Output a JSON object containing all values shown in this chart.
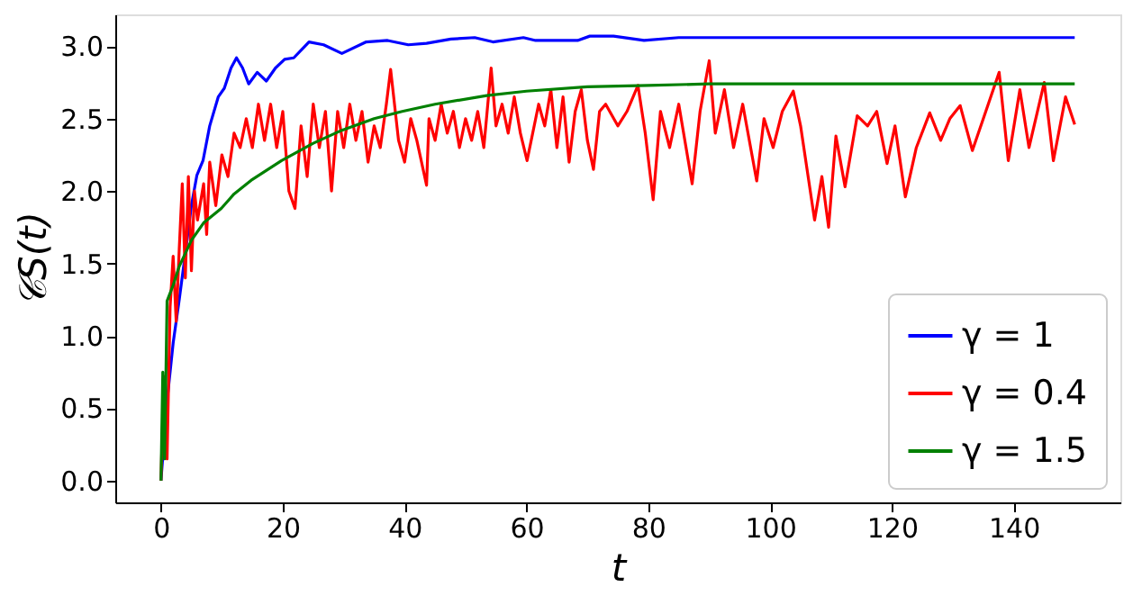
{
  "chart_data": {
    "type": "line",
    "xlabel": "t",
    "ylabel": "𝒞S(t)",
    "xlim": [
      -7.5,
      157.5
    ],
    "ylim": [
      -0.15,
      3.22
    ],
    "xticks": [
      0,
      20,
      40,
      60,
      80,
      100,
      120,
      140
    ],
    "yticks": [
      {
        "value": 0,
        "label": "0.0"
      },
      0.5,
      {
        "value": 1,
        "label": "1.0"
      },
      1.5,
      {
        "value": 2,
        "label": "2.0"
      },
      2.5,
      {
        "value": 3,
        "label": "3.0"
      }
    ],
    "grid": false,
    "legend": "bottom right",
    "marker": "none",
    "line_style": "solid",
    "series": [
      {
        "name": "γ = 1",
        "color": "#0000ff",
        "x": [
          0,
          1,
          2,
          3,
          4,
          5,
          5.9,
          6.9,
          8,
          9.4,
          10.4,
          11.5,
          12.4,
          13.4,
          14.4,
          15.8,
          17.3,
          18.8,
          20.3,
          21.8,
          24.3,
          26.7,
          29.7,
          33.7,
          37.2,
          40.6,
          43.6,
          47.6,
          51.5,
          54.5,
          59.5,
          61.5,
          68.4,
          70.4,
          74.3,
          79.3,
          85,
          100,
          120,
          150
        ],
        "values": [
          0,
          0.55,
          0.95,
          1.25,
          1.57,
          1.9,
          2.11,
          2.21,
          2.45,
          2.65,
          2.71,
          2.85,
          2.92,
          2.85,
          2.74,
          2.82,
          2.76,
          2.85,
          2.91,
          2.92,
          3.03,
          3.01,
          2.95,
          3.03,
          3.04,
          3.01,
          3.02,
          3.05,
          3.06,
          3.03,
          3.06,
          3.04,
          3.04,
          3.07,
          3.07,
          3.04,
          3.06,
          3.06,
          3.06,
          3.06
        ]
      },
      {
        "name": "γ = 0.4",
        "color": "#ff0000",
        "x": [
          0,
          0.5,
          1,
          1.5,
          2,
          2.5,
          3,
          3.5,
          4,
          4.5,
          5,
          5.5,
          6,
          7,
          7.5,
          8,
          9,
          10,
          11,
          12,
          13,
          14,
          15,
          16,
          17,
          18,
          19,
          20,
          21,
          22,
          23,
          24,
          25,
          26,
          27,
          28,
          29,
          30,
          31,
          32,
          33,
          34,
          35,
          36,
          37,
          37.7,
          39,
          40,
          41,
          42,
          43.6,
          44,
          45,
          46,
          47,
          48,
          49,
          50,
          51,
          52,
          53,
          54.2,
          55,
          56,
          57,
          58,
          59,
          60.1,
          62,
          63,
          64,
          65,
          66,
          67,
          68,
          69,
          70,
          71,
          72,
          73,
          75,
          76.5,
          78.3,
          79.5,
          80.8,
          82,
          83.5,
          85,
          87.2,
          88.5,
          90,
          91,
          92.5,
          94,
          95.5,
          97.8,
          99,
          100.5,
          102,
          103.8,
          105,
          107.3,
          108.5,
          109.6,
          110.8,
          112.3,
          114.3,
          116,
          117.5,
          119.2,
          120.5,
          122.2,
          124,
          126.2,
          128,
          129.5,
          131.2,
          133.2,
          135,
          137.6,
          139.1,
          141,
          142.5,
          145,
          146.5,
          148.5,
          150
        ],
        "values": [
          0,
          0.72,
          0.15,
          1.2,
          1.55,
          1.1,
          1.6,
          2.05,
          1.4,
          2.1,
          1.45,
          2.0,
          1.8,
          2.05,
          1.7,
          2.2,
          1.9,
          2.25,
          2.1,
          2.4,
          2.3,
          2.5,
          2.3,
          2.6,
          2.35,
          2.6,
          2.3,
          2.55,
          2.0,
          1.88,
          2.45,
          2.1,
          2.6,
          2.3,
          2.55,
          2.0,
          2.55,
          2.3,
          2.6,
          2.35,
          2.55,
          2.2,
          2.45,
          2.3,
          2.6,
          2.84,
          2.35,
          2.2,
          2.5,
          2.35,
          2.04,
          2.5,
          2.35,
          2.6,
          2.4,
          2.55,
          2.3,
          2.5,
          2.35,
          2.55,
          2.3,
          2.85,
          2.45,
          2.6,
          2.4,
          2.65,
          2.4,
          2.21,
          2.6,
          2.45,
          2.7,
          2.3,
          2.65,
          2.2,
          2.55,
          2.7,
          2.35,
          2.15,
          2.55,
          2.6,
          2.45,
          2.55,
          2.73,
          2.4,
          1.94,
          2.55,
          2.3,
          2.6,
          2.05,
          2.55,
          2.9,
          2.4,
          2.7,
          2.3,
          2.6,
          2.07,
          2.5,
          2.3,
          2.55,
          2.69,
          2.45,
          1.8,
          2.1,
          1.75,
          2.38,
          2.03,
          2.52,
          2.45,
          2.55,
          2.19,
          2.45,
          1.96,
          2.3,
          2.54,
          2.35,
          2.5,
          2.59,
          2.28,
          2.5,
          2.82,
          2.21,
          2.7,
          2.3,
          2.75,
          2.21,
          2.65,
          2.46
        ]
      },
      {
        "name": "γ = 1.5",
        "color": "#008000",
        "x": [
          0,
          0.3,
          0.6,
          1,
          2,
          3,
          5,
          7,
          9.9,
          12,
          15,
          19.8,
          25,
          29.7,
          35,
          39.6,
          45,
          53.5,
          60,
          70,
          80,
          90,
          100,
          120,
          150
        ],
        "values": [
          0,
          0.75,
          0.15,
          1.24,
          1.35,
          1.48,
          1.66,
          1.78,
          1.88,
          1.98,
          2.08,
          2.21,
          2.33,
          2.42,
          2.5,
          2.55,
          2.6,
          2.66,
          2.69,
          2.72,
          2.73,
          2.74,
          2.74,
          2.74,
          2.74
        ]
      }
    ]
  }
}
